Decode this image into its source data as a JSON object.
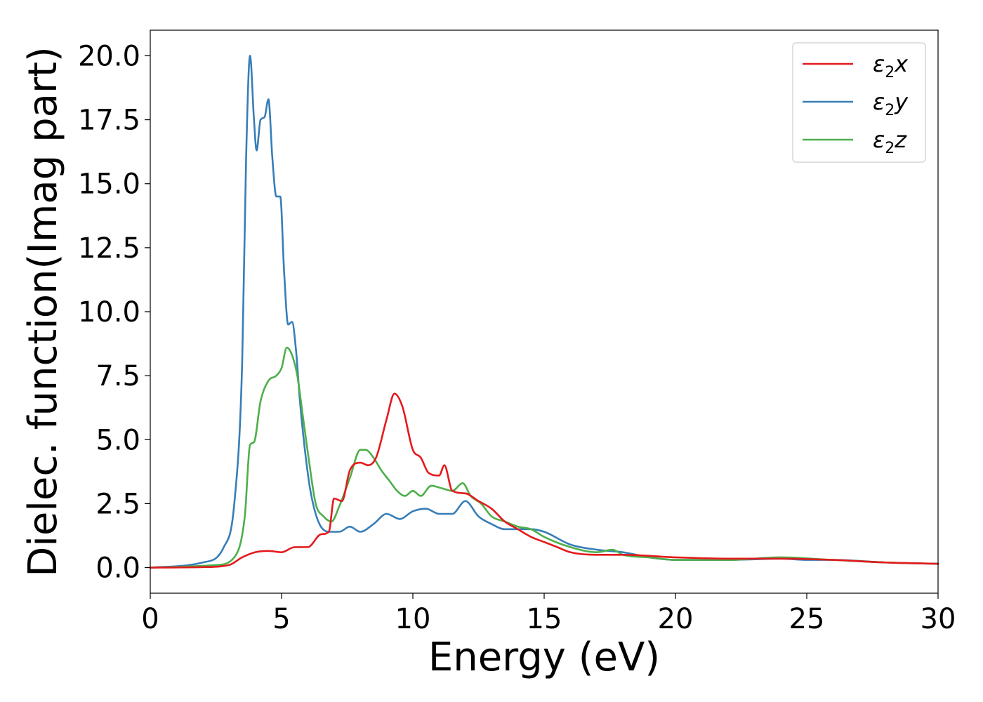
{
  "chart_data": {
    "type": "line",
    "title": "",
    "xlabel": "Energy (eV)",
    "ylabel": "Dielec. function(Imag part)",
    "xlim": [
      0,
      30
    ],
    "ylim": [
      -1,
      21
    ],
    "xticks": [
      0,
      5,
      10,
      15,
      20,
      25,
      30
    ],
    "xtick_labels": [
      "0",
      "5",
      "10",
      "15",
      "20",
      "25",
      "30"
    ],
    "yticks": [
      0,
      2.5,
      5,
      7.5,
      10,
      12.5,
      15,
      17.5,
      20
    ],
    "ytick_labels": [
      "0.0",
      "2.5",
      "5.0",
      "7.5",
      "10.0",
      "12.5",
      "15.0",
      "17.5",
      "20.0"
    ],
    "grid": false,
    "legend_position": "top-right",
    "series": [
      {
        "name": "ε₂x",
        "legend_base": "ε",
        "legend_sub": "2",
        "legend_suffix": "x",
        "color": "#e41a1c",
        "x": [
          0,
          2,
          3,
          3.5,
          4,
          4.5,
          5,
          5.5,
          6,
          6.5,
          6.8,
          7,
          7.3,
          7.6,
          8,
          8.3,
          8.6,
          9,
          9.3,
          9.6,
          10,
          10.3,
          10.6,
          11,
          11.2,
          11.5,
          12,
          12.5,
          13,
          13.5,
          14,
          14.5,
          15,
          15.5,
          16,
          17,
          18,
          20,
          22,
          24,
          26,
          28,
          30
        ],
        "y": [
          0,
          0.02,
          0.1,
          0.4,
          0.6,
          0.65,
          0.6,
          0.8,
          0.8,
          1.3,
          1.4,
          2.7,
          2.6,
          3.8,
          4.1,
          4.0,
          4.3,
          5.8,
          6.8,
          6.3,
          4.6,
          4.3,
          3.7,
          3.6,
          4.0,
          3.0,
          2.9,
          2.6,
          2.3,
          1.8,
          1.5,
          1.2,
          1.0,
          0.8,
          0.6,
          0.5,
          0.5,
          0.4,
          0.35,
          0.35,
          0.3,
          0.2,
          0.15
        ]
      },
      {
        "name": "ε₂y",
        "legend_base": "ε",
        "legend_sub": "2",
        "legend_suffix": "y",
        "color": "#377eb8",
        "x": [
          0,
          2,
          2.8,
          3.2,
          3.5,
          3.65,
          3.8,
          3.95,
          4.05,
          4.2,
          4.35,
          4.5,
          4.65,
          4.8,
          4.95,
          5.1,
          5.25,
          5.4,
          5.55,
          5.7,
          5.9,
          6.1,
          6.4,
          6.8,
          7.2,
          7.6,
          8,
          8.5,
          9,
          9.5,
          10,
          10.5,
          11,
          11.5,
          12,
          12.5,
          13,
          13.5,
          14,
          14.5,
          15,
          16,
          17,
          18,
          19,
          20,
          22,
          24,
          25,
          26,
          28,
          30
        ],
        "y": [
          0,
          0.2,
          0.8,
          2.5,
          8,
          16,
          20,
          17.5,
          16.3,
          17.5,
          17.6,
          18.3,
          16,
          14.5,
          14.5,
          11.5,
          9.5,
          9.6,
          8.5,
          6.5,
          4.5,
          3.0,
          1.8,
          1.4,
          1.4,
          1.6,
          1.4,
          1.7,
          2.1,
          1.9,
          2.2,
          2.3,
          2.1,
          2.1,
          2.6,
          2.0,
          1.7,
          1.5,
          1.5,
          1.5,
          1.4,
          0.9,
          0.7,
          0.6,
          0.4,
          0.3,
          0.3,
          0.35,
          0.3,
          0.3,
          0.2,
          0.15
        ]
      },
      {
        "name": "ε₂z",
        "legend_base": "ε",
        "legend_sub": "2",
        "legend_suffix": "z",
        "color": "#4daf4a",
        "x": [
          0,
          2.5,
          3.2,
          3.6,
          3.8,
          3.95,
          4.2,
          4.5,
          4.8,
          5.0,
          5.2,
          5.4,
          5.6,
          5.8,
          6.0,
          6.3,
          6.6,
          6.9,
          7.2,
          7.6,
          8.0,
          8.2,
          8.5,
          8.8,
          9.1,
          9.4,
          9.7,
          10.0,
          10.3,
          10.7,
          11.1,
          11.5,
          11.9,
          12.2,
          12.6,
          13.0,
          13.5,
          14.0,
          14.5,
          15,
          16,
          17,
          17.6,
          18,
          19,
          20,
          22,
          24,
          26,
          28,
          30
        ],
        "y": [
          0,
          0.1,
          0.4,
          2.0,
          4.8,
          4.9,
          6.5,
          7.3,
          7.5,
          7.8,
          8.6,
          8.3,
          7.5,
          6.0,
          4.5,
          2.5,
          2.0,
          1.8,
          2.4,
          3.5,
          4.6,
          4.6,
          4.3,
          3.8,
          3.4,
          3.0,
          2.8,
          3.0,
          2.8,
          3.2,
          3.1,
          3.0,
          3.3,
          2.8,
          2.5,
          2.0,
          1.8,
          1.6,
          1.5,
          1.2,
          0.8,
          0.6,
          0.7,
          0.5,
          0.4,
          0.3,
          0.3,
          0.4,
          0.3,
          0.2,
          0.15
        ]
      }
    ]
  }
}
